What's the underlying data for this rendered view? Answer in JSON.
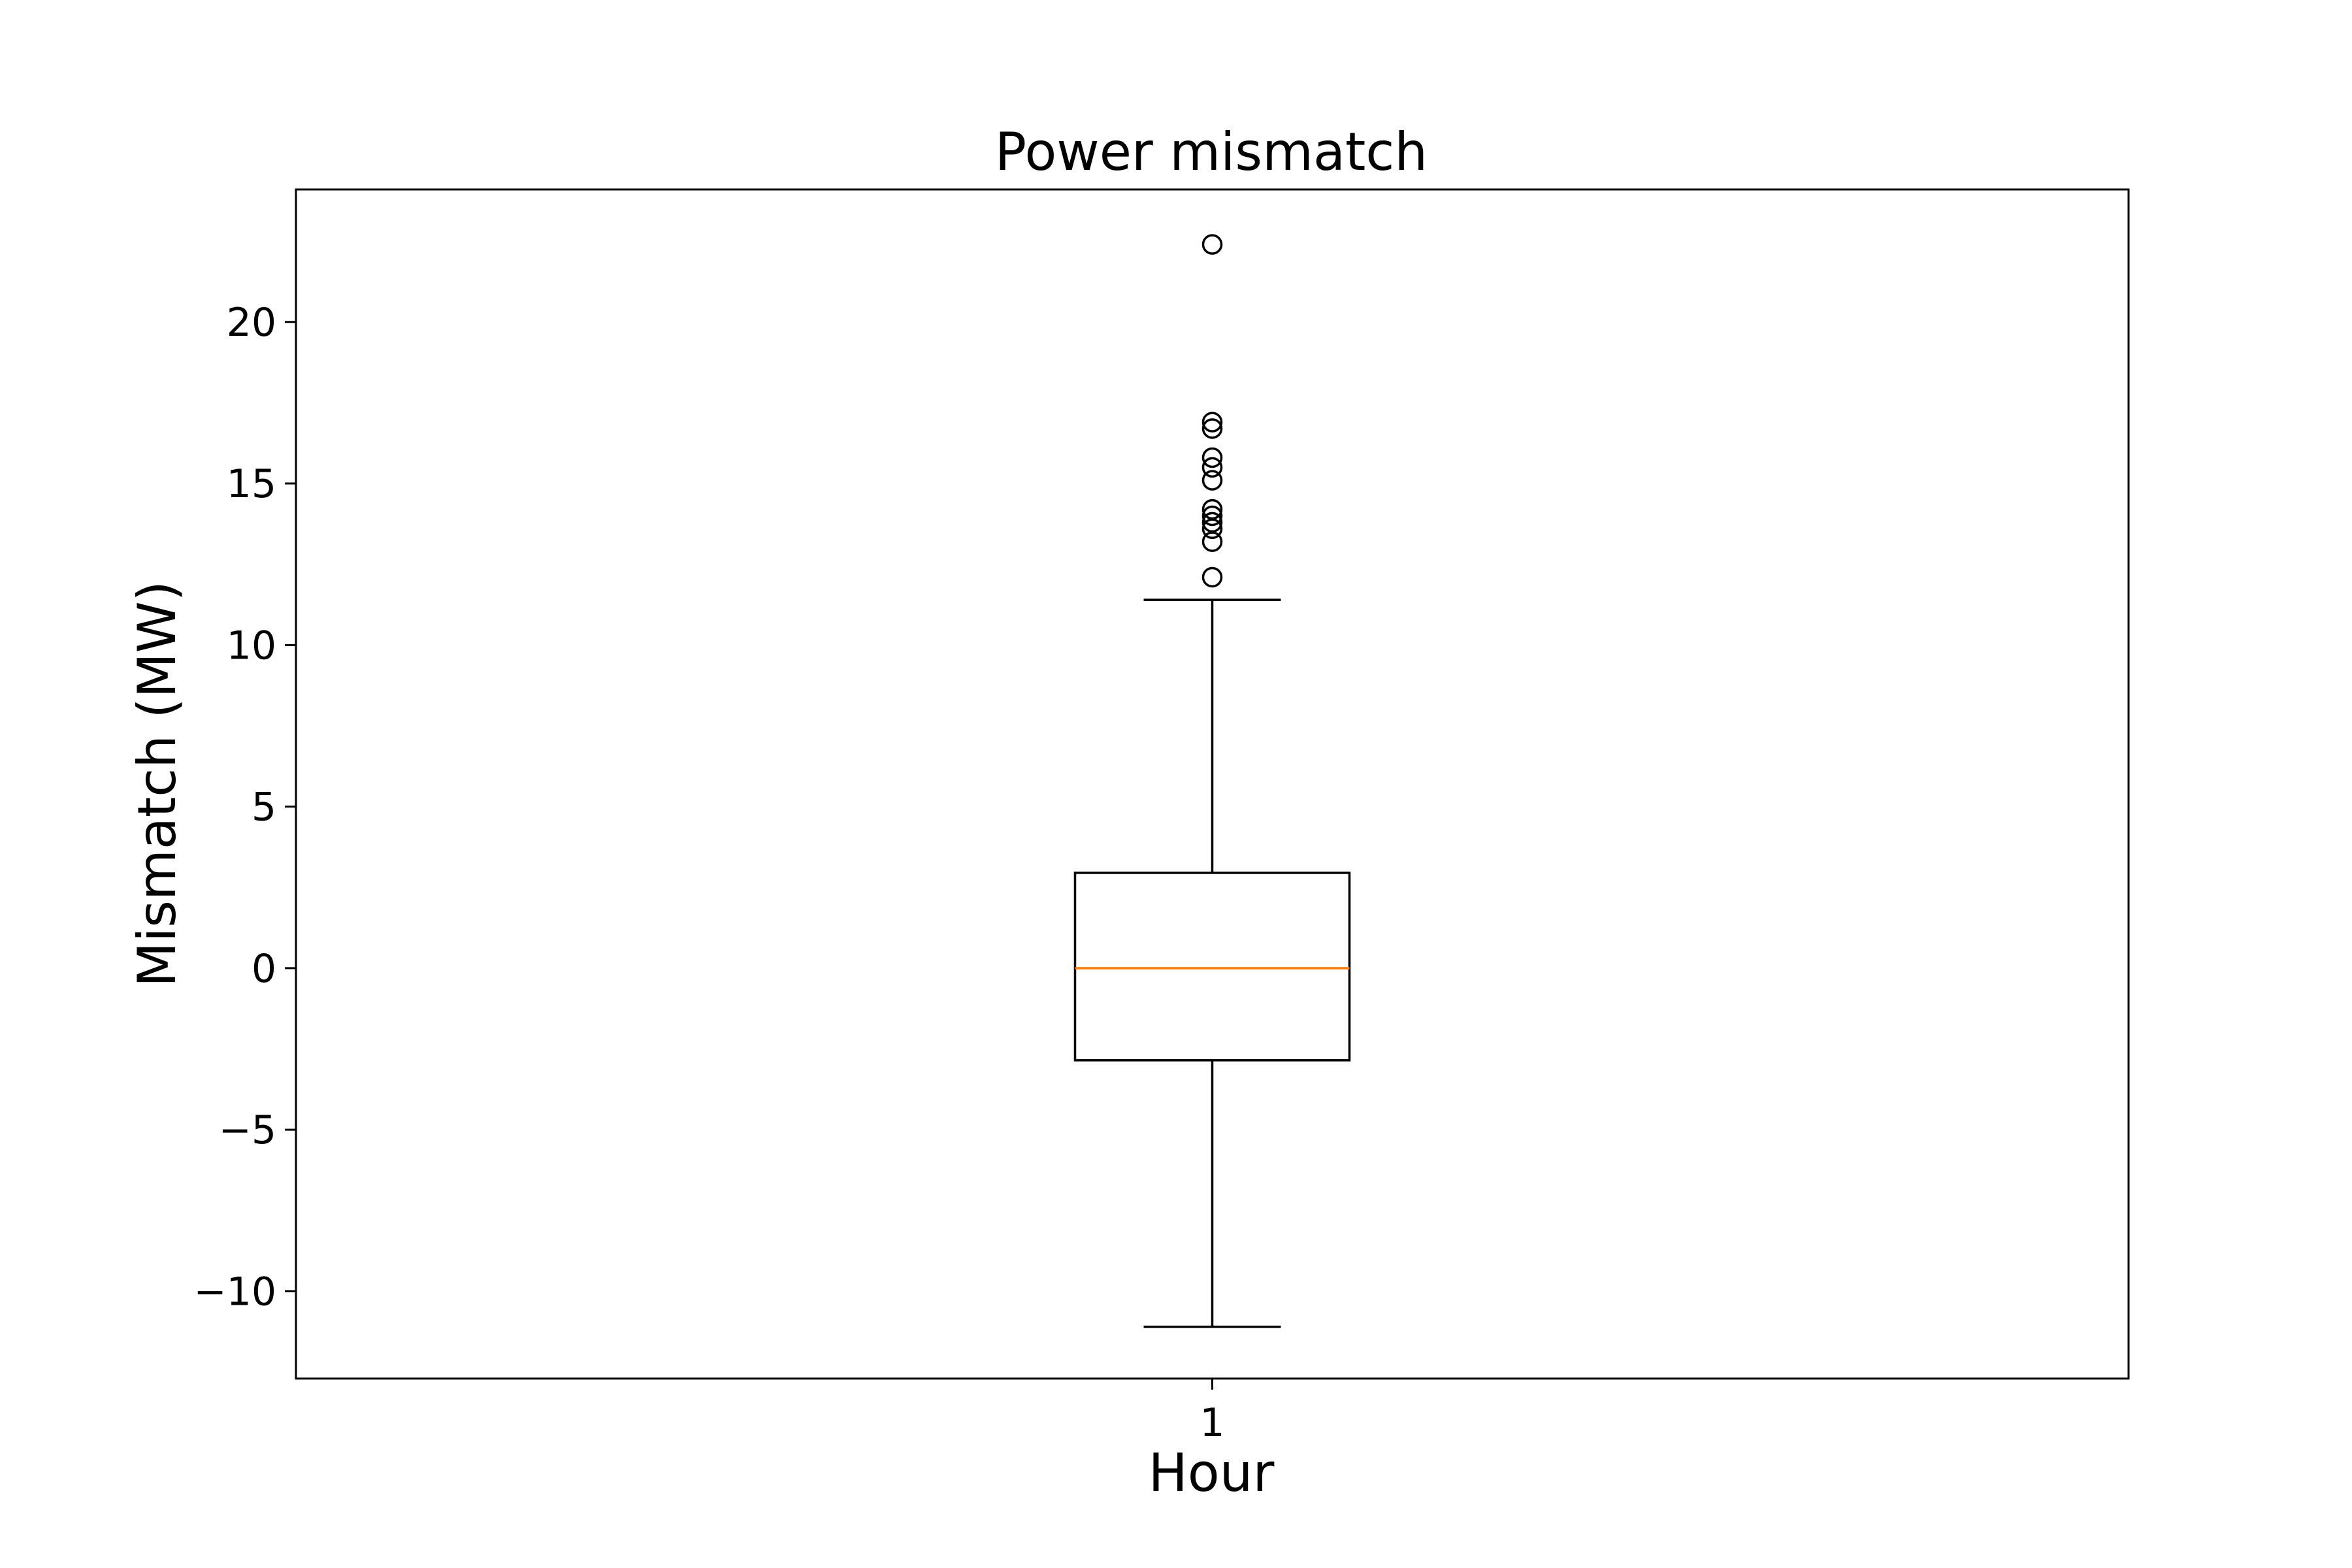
{
  "chart_data": {
    "type": "box",
    "title": "Power mismatch",
    "xlabel": "Hour",
    "ylabel": "Mismatch (MW)",
    "categories": [
      "1"
    ],
    "ylim": [
      -12.7,
      24.1
    ],
    "yticks": [
      -10,
      -5,
      0,
      5,
      10,
      15,
      20
    ],
    "ytick_labels": [
      "−10",
      "−5",
      "0",
      "5",
      "10",
      "15",
      "20"
    ],
    "grid": false,
    "boxes": [
      {
        "category": "1",
        "whisker_low": -11.1,
        "q1": -2.85,
        "median": 0.0,
        "q3": 2.95,
        "whisker_high": 11.4,
        "outliers": [
          12.1,
          13.2,
          13.6,
          13.8,
          14.0,
          14.2,
          15.1,
          15.5,
          15.8,
          16.7,
          16.9,
          22.4
        ]
      }
    ],
    "colors": {
      "box": "#000000",
      "median": "#ff7f0e",
      "frame": "#000000"
    }
  }
}
